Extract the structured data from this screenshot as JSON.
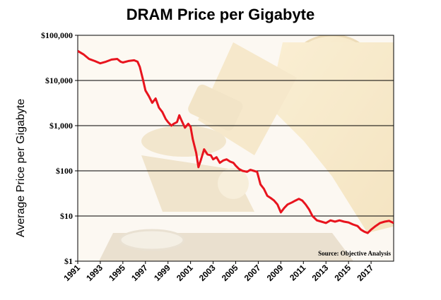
{
  "chart_data": {
    "type": "line",
    "title": "DRAM Price per Gigabyte",
    "ylabel": "Average Price per Gigabyte",
    "xlabel": "",
    "y_scale": "log",
    "ylim": [
      1,
      100000
    ],
    "xlim": [
      1991,
      2019
    ],
    "grid": "horizontal",
    "ytick_values": [
      1,
      10,
      100,
      1000,
      10000,
      100000
    ],
    "ytick_labels": [
      "$1",
      "$10",
      "$100",
      "$1,000",
      "$10,000",
      "$100,000"
    ],
    "xtick_labels": [
      "1991",
      "1993",
      "1995",
      "1997",
      "1999",
      "2001",
      "2003",
      "2005",
      "2007",
      "2009",
      "2011",
      "2013",
      "2015",
      "2017"
    ],
    "annotation": "Source: Objective Analysis",
    "line_color": "#e8141e",
    "background": "faded microscope photograph",
    "series": [
      {
        "x": [
          1991.0,
          1991.5,
          1992.0,
          1992.5,
          1993.0,
          1993.5,
          1994.0,
          1994.5,
          1994.8,
          1995.0,
          1995.5,
          1996.0,
          1996.3,
          1996.5,
          1996.8,
          1997.0,
          1997.3,
          1997.6,
          1997.9,
          1998.2,
          1998.5,
          1998.8,
          1999.0,
          1999.3,
          1999.5,
          1999.8,
          2000.0,
          2000.2,
          2000.5,
          2000.8,
          2001.0,
          2001.2,
          2001.5,
          2001.7,
          2001.9,
          2002.2,
          2002.5,
          2002.8,
          2003.0,
          2003.3,
          2003.6,
          2003.9,
          2004.2,
          2004.5,
          2004.8,
          2005.0,
          2005.3,
          2005.6,
          2006.0,
          2006.3,
          2006.6,
          2006.9,
          2007.2,
          2007.5,
          2007.8,
          2008.1,
          2008.4,
          2008.7,
          2009.0,
          2009.3,
          2009.6,
          2010.0,
          2010.3,
          2010.6,
          2010.9,
          2011.2,
          2011.5,
          2011.8,
          2012.2,
          2012.6,
          2013.0,
          2013.4,
          2013.8,
          2014.2,
          2014.6,
          2015.0,
          2015.4,
          2015.8,
          2016.1,
          2016.4,
          2016.7,
          2017.0,
          2017.4,
          2017.8,
          2018.2,
          2018.6,
          2019.0
        ],
        "y": [
          45000,
          38000,
          30000,
          27000,
          24000,
          26000,
          29000,
          30000,
          26000,
          25000,
          27000,
          28000,
          26000,
          20000,
          10000,
          6000,
          4500,
          3200,
          4000,
          2500,
          2000,
          1400,
          1200,
          1000,
          1100,
          1200,
          1700,
          1300,
          900,
          1100,
          950,
          500,
          250,
          120,
          170,
          300,
          230,
          220,
          180,
          200,
          150,
          170,
          180,
          160,
          150,
          130,
          110,
          100,
          95,
          105,
          100,
          95,
          50,
          40,
          28,
          25,
          22,
          18,
          12,
          15,
          18,
          20,
          22,
          24,
          22,
          18,
          14,
          10,
          8,
          7.5,
          7,
          8,
          7.5,
          8,
          7.5,
          7.2,
          6.5,
          6,
          5,
          4.5,
          4.2,
          5,
          6,
          7,
          7.5,
          7.8,
          7
        ]
      }
    ]
  }
}
